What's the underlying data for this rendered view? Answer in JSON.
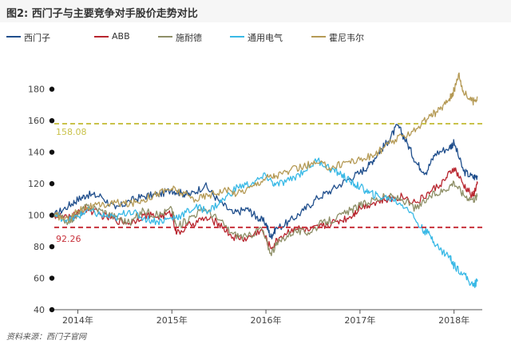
{
  "header": {
    "title": "图2: 西门子与主要竞争对手股价走势对比"
  },
  "footer": {
    "source": "资料来源：西门子官网"
  },
  "chart_data": {
    "type": "line",
    "title": "图2: 西门子与主要竞争对手股价走势对比",
    "xlabel": "",
    "ylabel": "",
    "xlim": [
      2013.75,
      2018.3
    ],
    "ylim": [
      40,
      190
    ],
    "yticks": [
      40,
      60,
      80,
      100,
      120,
      140,
      160,
      180
    ],
    "xticks": [
      {
        "x": 2014,
        "label": "2014年"
      },
      {
        "x": 2015,
        "label": "2015年"
      },
      {
        "x": 2016,
        "label": "2016年"
      },
      {
        "x": 2017,
        "label": "2017年"
      },
      {
        "x": 2018,
        "label": "2018年"
      }
    ],
    "reference_lines": [
      {
        "value": 158.08,
        "label": "158.08",
        "color": "#c9c24a"
      },
      {
        "value": 92.26,
        "label": "92.26",
        "color": "#c8323c"
      }
    ],
    "series": [
      {
        "name": "西门子",
        "color": "#1f4e8c",
        "x": [
          2013.75,
          2013.9,
          2014.0,
          2014.1,
          2014.25,
          2014.4,
          2014.55,
          2014.7,
          2014.85,
          2015.0,
          2015.1,
          2015.2,
          2015.35,
          2015.5,
          2015.65,
          2015.8,
          2015.9,
          2016.0,
          2016.05,
          2016.1,
          2016.25,
          2016.4,
          2016.55,
          2016.7,
          2016.85,
          2017.0,
          2017.1,
          2017.2,
          2017.3,
          2017.4,
          2017.5,
          2017.6,
          2017.7,
          2017.8,
          2017.95,
          2018.0,
          2018.1,
          2018.2,
          2018.25
        ],
        "y": [
          100,
          106,
          110,
          113,
          112,
          104,
          109,
          112,
          113,
          116,
          114,
          113,
          119,
          109,
          101,
          104,
          99,
          95,
          86,
          91,
          96,
          103,
          111,
          116,
          122,
          127,
          132,
          140,
          147,
          157,
          146,
          133,
          127,
          139,
          143,
          146,
          128,
          124,
          125
        ]
      },
      {
        "name": "ABB",
        "color": "#b8262f",
        "x": [
          2013.75,
          2013.9,
          2014.0,
          2014.1,
          2014.25,
          2014.4,
          2014.55,
          2014.7,
          2014.85,
          2015.0,
          2015.05,
          2015.2,
          2015.35,
          2015.5,
          2015.65,
          2015.8,
          2015.95,
          2016.05,
          2016.15,
          2016.3,
          2016.45,
          2016.6,
          2016.75,
          2016.9,
          2017.0,
          2017.15,
          2017.3,
          2017.45,
          2017.6,
          2017.75,
          2017.9,
          2018.0,
          2018.1,
          2018.2,
          2018.25
        ],
        "y": [
          100,
          98,
          101,
          104,
          100,
          97,
          95,
          100,
          99,
          101,
          88,
          94,
          98,
          95,
          86,
          85,
          91,
          79,
          86,
          92,
          90,
          93,
          96,
          99,
          105,
          108,
          110,
          112,
          108,
          115,
          122,
          130,
          119,
          112,
          120
        ]
      },
      {
        "name": "施耐德",
        "color": "#8e8f67",
        "x": [
          2013.75,
          2013.9,
          2014.0,
          2014.1,
          2014.25,
          2014.4,
          2014.55,
          2014.7,
          2014.85,
          2015.0,
          2015.05,
          2015.2,
          2015.35,
          2015.5,
          2015.65,
          2015.8,
          2015.95,
          2016.05,
          2016.15,
          2016.3,
          2016.45,
          2016.6,
          2016.75,
          2016.9,
          2017.0,
          2017.15,
          2017.3,
          2017.45,
          2017.6,
          2017.75,
          2017.9,
          2018.0,
          2018.1,
          2018.2,
          2018.25
        ],
        "y": [
          100,
          96,
          100,
          106,
          103,
          99,
          95,
          103,
          100,
          104,
          92,
          99,
          104,
          97,
          88,
          86,
          92,
          76,
          84,
          90,
          89,
          95,
          98,
          103,
          106,
          110,
          112,
          110,
          104,
          112,
          116,
          121,
          113,
          110,
          112
        ]
      },
      {
        "name": "通用电气",
        "color": "#39b9e6",
        "x": [
          2013.75,
          2013.9,
          2014.0,
          2014.1,
          2014.25,
          2014.4,
          2014.55,
          2014.7,
          2014.85,
          2015.0,
          2015.1,
          2015.25,
          2015.4,
          2015.55,
          2015.7,
          2015.85,
          2016.0,
          2016.1,
          2016.25,
          2016.4,
          2016.55,
          2016.7,
          2016.8,
          2016.9,
          2017.0,
          2017.1,
          2017.2,
          2017.35,
          2017.5,
          2017.65,
          2017.75,
          2017.85,
          2017.95,
          2018.0,
          2018.1,
          2018.2,
          2018.25
        ],
        "y": [
          100,
          97,
          99,
          103,
          100,
          98,
          103,
          98,
          96,
          98,
          100,
          105,
          103,
          110,
          118,
          120,
          125,
          119,
          122,
          128,
          135,
          129,
          126,
          121,
          118,
          114,
          112,
          110,
          105,
          92,
          87,
          78,
          74,
          68,
          63,
          55,
          58
        ]
      },
      {
        "name": "霍尼韦尔",
        "color": "#b59a55",
        "x": [
          2013.75,
          2013.9,
          2014.0,
          2014.1,
          2014.25,
          2014.4,
          2014.55,
          2014.7,
          2014.85,
          2015.0,
          2015.1,
          2015.25,
          2015.4,
          2015.55,
          2015.7,
          2015.85,
          2016.0,
          2016.1,
          2016.25,
          2016.4,
          2016.55,
          2016.7,
          2016.85,
          2017.0,
          2017.15,
          2017.3,
          2017.45,
          2017.6,
          2017.75,
          2017.85,
          2017.95,
          2018.0,
          2018.05,
          2018.1,
          2018.2,
          2018.25
        ],
        "y": [
          100,
          97,
          103,
          105,
          106,
          108,
          107,
          110,
          114,
          117,
          114,
          110,
          113,
          116,
          114,
          118,
          124,
          125,
          128,
          131,
          133,
          130,
          134,
          135,
          138,
          145,
          150,
          155,
          163,
          167,
          174,
          179,
          190,
          178,
          172,
          175
        ]
      }
    ]
  }
}
